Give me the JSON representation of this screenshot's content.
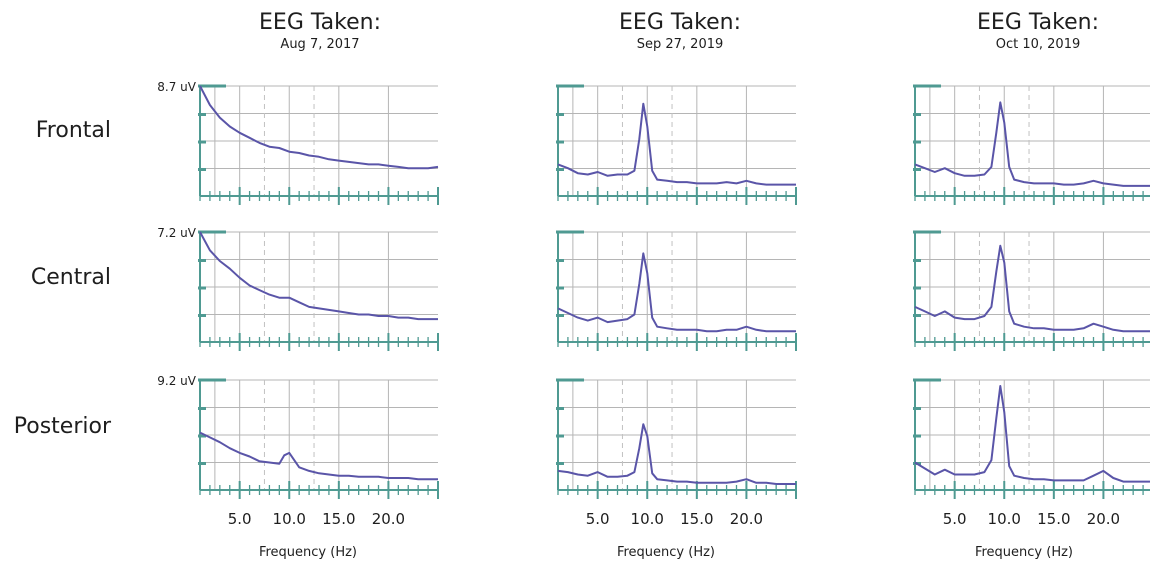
{
  "colors": {
    "grid": "#b5b5b5",
    "dash": "#c2c2c2",
    "axis": "#4f9a92",
    "line": "#5a55a8"
  },
  "chart_data": {
    "type": "line",
    "xlabel": "Frequency (Hz)",
    "x_ticks": [
      "5.0",
      "10.0",
      "15.0",
      "20.0"
    ],
    "xlim": [
      1,
      25
    ],
    "rows": [
      {
        "label": "Frontal",
        "ymax_label": "8.7 uV",
        "ymax": 8.7
      },
      {
        "label": "Central",
        "ymax_label": "7.2 uV",
        "ymax": 7.2
      },
      {
        "label": "Posterior",
        "ymax_label": "9.2 uV",
        "ymax": 9.2
      }
    ],
    "columns": [
      {
        "title": "EEG Taken:",
        "date": "Aug 7, 2017"
      },
      {
        "title": "EEG Taken:",
        "date": "Sep 27, 2019"
      },
      {
        "title": "EEG Taken:",
        "date": "Oct 10, 2019"
      }
    ],
    "series": [
      {
        "row": 0,
        "col": 0,
        "x": [
          1,
          2,
          3,
          4,
          5,
          6,
          7,
          8,
          9,
          10,
          11,
          12,
          13,
          14,
          15,
          16,
          17,
          18,
          19,
          20,
          21,
          22,
          23,
          24,
          25
        ],
        "y": [
          8.7,
          7.2,
          6.2,
          5.5,
          5.0,
          4.6,
          4.2,
          3.9,
          3.8,
          3.5,
          3.4,
          3.2,
          3.1,
          2.9,
          2.8,
          2.7,
          2.6,
          2.5,
          2.5,
          2.4,
          2.3,
          2.2,
          2.2,
          2.2,
          2.3
        ]
      },
      {
        "row": 1,
        "col": 0,
        "x": [
          1,
          2,
          3,
          4,
          5,
          6,
          7,
          8,
          9,
          10,
          11,
          12,
          13,
          14,
          15,
          16,
          17,
          18,
          19,
          20,
          21,
          22,
          23,
          24,
          25
        ],
        "y": [
          7.2,
          6.0,
          5.3,
          4.8,
          4.2,
          3.7,
          3.4,
          3.1,
          2.9,
          2.9,
          2.6,
          2.3,
          2.2,
          2.1,
          2.0,
          1.9,
          1.8,
          1.8,
          1.7,
          1.7,
          1.6,
          1.6,
          1.5,
          1.5,
          1.5
        ]
      },
      {
        "row": 2,
        "col": 0,
        "x": [
          1,
          2,
          3,
          4,
          5,
          6,
          7,
          8,
          9,
          9.5,
          10,
          10.5,
          11,
          12,
          13,
          14,
          15,
          16,
          17,
          18,
          19,
          20,
          21,
          22,
          23,
          24,
          25
        ],
        "y": [
          4.8,
          4.4,
          4.0,
          3.5,
          3.1,
          2.8,
          2.4,
          2.3,
          2.2,
          2.9,
          3.1,
          2.5,
          1.9,
          1.6,
          1.4,
          1.3,
          1.2,
          1.2,
          1.1,
          1.1,
          1.1,
          1.0,
          1.0,
          1.0,
          0.9,
          0.9,
          0.9
        ]
      },
      {
        "row": 0,
        "col": 1,
        "x": [
          1,
          2,
          3,
          4,
          5,
          6,
          7,
          8,
          8.7,
          9.2,
          9.6,
          10,
          10.5,
          11,
          12,
          13,
          14,
          15,
          16,
          17,
          18,
          19,
          20,
          21,
          22,
          23,
          24,
          25
        ],
        "y": [
          2.5,
          2.2,
          1.8,
          1.7,
          1.9,
          1.6,
          1.7,
          1.7,
          2.0,
          4.5,
          7.3,
          5.5,
          2.0,
          1.3,
          1.2,
          1.1,
          1.1,
          1.0,
          1.0,
          1.0,
          1.1,
          1.0,
          1.2,
          1.0,
          0.9,
          0.9,
          0.9,
          0.9
        ]
      },
      {
        "row": 1,
        "col": 1,
        "x": [
          1,
          2,
          3,
          4,
          5,
          6,
          7,
          8,
          8.7,
          9.2,
          9.6,
          10,
          10.5,
          11,
          12,
          13,
          14,
          15,
          16,
          17,
          18,
          19,
          20,
          21,
          22,
          23,
          24,
          25
        ],
        "y": [
          2.2,
          1.9,
          1.6,
          1.4,
          1.6,
          1.3,
          1.4,
          1.5,
          1.8,
          3.8,
          5.8,
          4.5,
          1.6,
          1.0,
          0.9,
          0.8,
          0.8,
          0.8,
          0.7,
          0.7,
          0.8,
          0.8,
          1.0,
          0.8,
          0.7,
          0.7,
          0.7,
          0.7
        ]
      },
      {
        "row": 2,
        "col": 1,
        "x": [
          1,
          2,
          3,
          4,
          5,
          6,
          7,
          8,
          8.7,
          9.2,
          9.6,
          10,
          10.5,
          11,
          12,
          13,
          14,
          15,
          16,
          17,
          18,
          19,
          20,
          21,
          22,
          23,
          24,
          25
        ],
        "y": [
          1.6,
          1.5,
          1.3,
          1.2,
          1.5,
          1.1,
          1.1,
          1.2,
          1.5,
          3.5,
          5.5,
          4.5,
          1.4,
          0.9,
          0.8,
          0.7,
          0.7,
          0.6,
          0.6,
          0.6,
          0.6,
          0.7,
          0.9,
          0.6,
          0.6,
          0.5,
          0.5,
          0.5
        ]
      },
      {
        "row": 0,
        "col": 2,
        "x": [
          1,
          2,
          3,
          4,
          5,
          6,
          7,
          8,
          8.7,
          9.2,
          9.6,
          10,
          10.5,
          11,
          12,
          13,
          14,
          15,
          16,
          17,
          18,
          19,
          20,
          21,
          22,
          23,
          24,
          25
        ],
        "y": [
          2.5,
          2.2,
          1.9,
          2.2,
          1.8,
          1.6,
          1.6,
          1.7,
          2.3,
          5.0,
          7.4,
          5.8,
          2.3,
          1.3,
          1.1,
          1.0,
          1.0,
          1.0,
          0.9,
          0.9,
          1.0,
          1.2,
          1.0,
          0.9,
          0.8,
          0.8,
          0.8,
          0.8
        ]
      },
      {
        "row": 1,
        "col": 2,
        "x": [
          1,
          2,
          3,
          4,
          5,
          6,
          7,
          8,
          8.7,
          9.2,
          9.6,
          10,
          10.5,
          11,
          12,
          13,
          14,
          15,
          16,
          17,
          18,
          19,
          20,
          21,
          22,
          23,
          24,
          25
        ],
        "y": [
          2.3,
          2.0,
          1.7,
          2.0,
          1.6,
          1.5,
          1.5,
          1.7,
          2.3,
          4.6,
          6.3,
          5.2,
          2.0,
          1.2,
          1.0,
          0.9,
          0.9,
          0.8,
          0.8,
          0.8,
          0.9,
          1.2,
          1.0,
          0.8,
          0.7,
          0.7,
          0.7,
          0.7
        ]
      },
      {
        "row": 2,
        "col": 2,
        "x": [
          1,
          2,
          3,
          4,
          5,
          6,
          7,
          8,
          8.7,
          9.2,
          9.6,
          10,
          10.5,
          11,
          12,
          13,
          14,
          15,
          16,
          17,
          18,
          19,
          20,
          21,
          22,
          23,
          24,
          25
        ],
        "y": [
          2.3,
          1.8,
          1.3,
          1.7,
          1.3,
          1.3,
          1.3,
          1.5,
          2.5,
          6.0,
          8.7,
          6.5,
          2.0,
          1.2,
          1.0,
          0.9,
          0.9,
          0.8,
          0.8,
          0.8,
          0.8,
          1.2,
          1.6,
          1.0,
          0.7,
          0.7,
          0.7,
          0.7
        ]
      }
    ]
  }
}
